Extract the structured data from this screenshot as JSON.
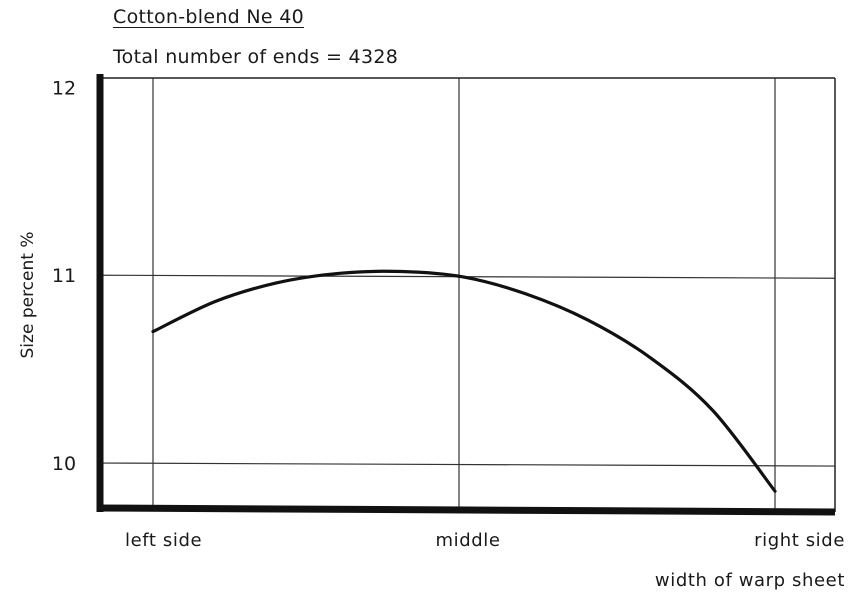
{
  "chart_data": {
    "type": "line",
    "title": "Cotton-blend Ne 40",
    "subtitle": "Total number of ends = 4328",
    "xlabel": "width of warp sheet",
    "ylabel": "Size percent %",
    "x_categories": [
      "left side",
      "middle",
      "right side"
    ],
    "xlim": [
      0,
      1
    ],
    "ylim": [
      9.75,
      12.05
    ],
    "yticks": [
      10,
      11,
      12
    ],
    "grid": true,
    "series": [
      {
        "x": [
          0,
          0.1,
          0.2,
          0.3,
          0.4,
          0.5,
          0.6,
          0.7,
          0.8,
          0.9,
          1.0
        ],
        "values": [
          10.7,
          10.86,
          10.96,
          11.01,
          11.02,
          10.99,
          10.9,
          10.76,
          10.56,
          10.28,
          9.85
        ]
      }
    ]
  }
}
